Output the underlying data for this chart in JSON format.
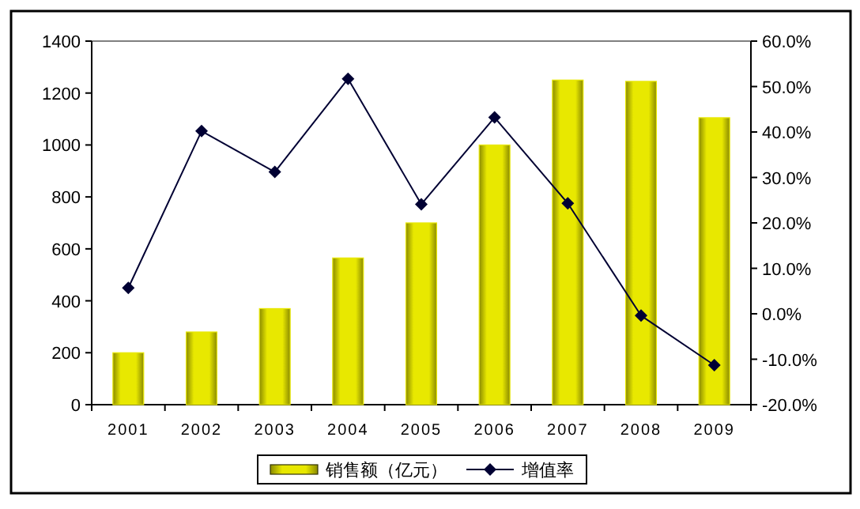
{
  "chart_data": {
    "type": "bar",
    "categories": [
      "2001",
      "2002",
      "2003",
      "2004",
      "2005",
      "2006",
      "2007",
      "2008",
      "2009"
    ],
    "series": [
      {
        "name": "销售额（亿元）",
        "color": "#e8e800",
        "values": [
          200,
          280,
          370,
          565,
          700,
          1000,
          1250,
          1245,
          1105
        ]
      },
      {
        "name": "增值率",
        "type": "line",
        "axis": "y2",
        "color": "#000033",
        "marker": "diamond",
        "values": [
          5.7,
          40.2,
          31.2,
          51.7,
          24.1,
          43.2,
          24.3,
          -0.4,
          -11.3
        ]
      }
    ],
    "ylim": [
      0,
      1400
    ],
    "yticks": [
      0,
      200,
      400,
      600,
      800,
      1000,
      1200,
      1400
    ],
    "y2lim": [
      -20,
      60
    ],
    "y2ticks": [
      {
        "value": -20,
        "label": "-20.0%"
      },
      {
        "value": -10,
        "label": "-10.0%"
      },
      {
        "value": 0,
        "label": "0.0%"
      },
      {
        "value": 10,
        "label": "10.0%"
      },
      {
        "value": 20,
        "label": "20.0%"
      },
      {
        "value": 30,
        "label": "30.0%"
      },
      {
        "value": 40,
        "label": "40.0%"
      },
      {
        "value": 50,
        "label": "50.0%"
      },
      {
        "value": 60,
        "label": "60.0%"
      }
    ],
    "legend": "bottom",
    "grid": false
  }
}
